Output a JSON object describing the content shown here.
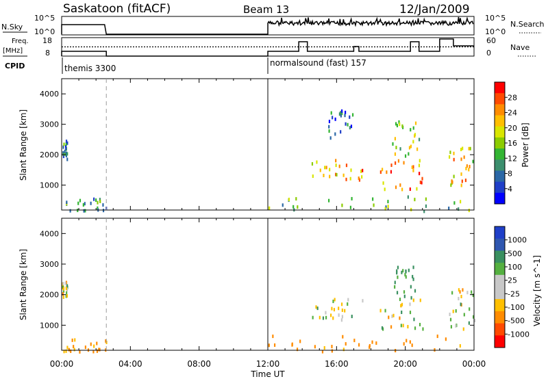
{
  "header": {
    "station": "Saskatoon (fitACF)",
    "beam": "Beam 13",
    "date": "12/Jan/2009"
  },
  "panels": {
    "nsky_label": "N.Sky",
    "nsky_tick_top": "10^5",
    "nsky_tick_bottom": "10^0",
    "nsearch_label": "N.Search",
    "nsearch_tick_top": "10^5",
    "nsearch_tick_bottom": "10^0",
    "freq_label_1": "Freq.",
    "freq_label_2": "[MHz]",
    "freq_tick_top": "18",
    "freq_tick_bottom": "8",
    "nave_label": "Nave",
    "nave_tick_top": "60",
    "nave_tick_bottom": "0",
    "cpid_label": "CPID",
    "cpid_1": "themis 3300",
    "cpid_2": "normalsound (fast) 157"
  },
  "power_colorbar": {
    "title": "Power [dB]",
    "ticks": [
      "28",
      "24",
      "20",
      "16",
      "12",
      "8",
      "4"
    ],
    "colors": [
      "#ff0000",
      "#ff4a00",
      "#ff8c00",
      "#ffbf00",
      "#d9e600",
      "#8ccc00",
      "#33b533",
      "#3c8f6e",
      "#2a67a6",
      "#1f3fc8",
      "#0000ff"
    ]
  },
  "velocity_colorbar": {
    "title": "Velocity [m s^-1]",
    "ticks": [
      "1000",
      "500",
      "100",
      "25",
      "-25",
      "-100",
      "-500",
      "-1000"
    ],
    "colors": [
      "#1f3fc8",
      "#2f57b0",
      "#3a9060",
      "#55b040",
      "#c8c8c8",
      "#c8c8c8",
      "#ffc000",
      "#ff8c00",
      "#ff4a00",
      "#ff0000"
    ]
  },
  "chart_data": {
    "type": "heatmap",
    "xlabel": "Time UT",
    "xticks": [
      "00:00",
      "04:00",
      "08:00",
      "12:00",
      "16:00",
      "20:00",
      "00:00"
    ],
    "xlim_hours": [
      0,
      24
    ],
    "ylabel": "Slant Range [km]",
    "yticks": [
      1000,
      2000,
      3000,
      4000
    ],
    "ylim": [
      180,
      4500
    ],
    "dashed_marker_hour": 2.6,
    "cpid_change_hour": 12.0,
    "data_gap_hours": [
      2.6,
      12.0
    ],
    "power_db_range": [
      0,
      30
    ],
    "velocity_range": [
      -1000,
      1000
    ],
    "nave_mean": 30,
    "freq_mean_mhz": 11,
    "power_regions": [
      {
        "t0": 0.0,
        "t1": 0.3,
        "r0": 1900,
        "r1": 2500,
        "db": 8
      },
      {
        "t0": 0.0,
        "t1": 2.6,
        "r0": 180,
        "r1": 600,
        "db": 10
      },
      {
        "t0": 12.0,
        "t1": 24.0,
        "r0": 180,
        "r1": 700,
        "db": 12
      },
      {
        "t0": 14.5,
        "t1": 17.5,
        "r0": 1200,
        "r1": 1900,
        "db": 22
      },
      {
        "t0": 15.5,
        "t1": 17.0,
        "r0": 2600,
        "r1": 3500,
        "db": 6
      },
      {
        "t0": 18.5,
        "t1": 21.0,
        "r0": 900,
        "r1": 1900,
        "db": 24
      },
      {
        "t0": 19.2,
        "t1": 20.8,
        "r0": 2000,
        "r1": 3200,
        "db": 16
      },
      {
        "t0": 22.5,
        "t1": 24.0,
        "r0": 900,
        "r1": 2300,
        "db": 20
      }
    ],
    "velocity_regions": [
      {
        "t0": 0.0,
        "t1": 0.3,
        "r0": 1900,
        "r1": 2500,
        "v": 0
      },
      {
        "t0": 0.0,
        "t1": 2.6,
        "r0": 180,
        "r1": 600,
        "v": -150
      },
      {
        "t0": 12.0,
        "t1": 24.0,
        "r0": 180,
        "r1": 700,
        "v": -200
      },
      {
        "t0": 14.5,
        "t1": 17.5,
        "r0": 1200,
        "r1": 1900,
        "v": 0
      },
      {
        "t0": 18.5,
        "t1": 21.0,
        "r0": 900,
        "r1": 1900,
        "v": 0
      },
      {
        "t0": 19.3,
        "t1": 20.6,
        "r0": 1900,
        "r1": 3100,
        "v": 150
      },
      {
        "t0": 22.5,
        "t1": 24.0,
        "r0": 900,
        "r1": 2300,
        "v": 0
      }
    ]
  }
}
